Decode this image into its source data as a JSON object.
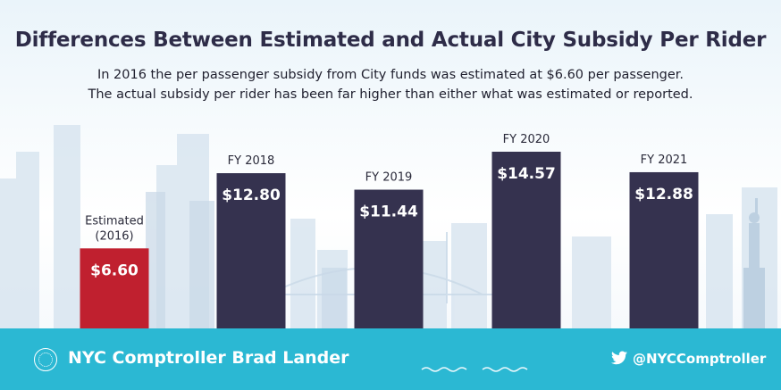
{
  "title": "Differences Between Estimated and Actual City Subsidy Per Rider",
  "subtitle_lines": [
    "In 2016 the per passenger subsidy from City funds was estimated at $6.60 per passenger.",
    "The actual subsidy per rider has been far higher than either what was estimated or reported."
  ],
  "footer": {
    "org_name": "NYC Comptroller Brad Lander",
    "handle": "@NYCComptroller",
    "icons": [
      "nyc-seal-icon",
      "twitter-bird-icon"
    ],
    "background_color": "#2bb8d3"
  },
  "chart_data": {
    "type": "bar",
    "categories": [
      "Estimated (2016)",
      "FY 2018",
      "FY 2019",
      "FY 2020",
      "FY 2021"
    ],
    "category_label_lines": [
      [
        "Estimated",
        "(2016)"
      ],
      [
        "FY 2018"
      ],
      [
        "FY 2019"
      ],
      [
        "FY 2020"
      ],
      [
        "FY 2021"
      ]
    ],
    "values": [
      6.6,
      12.8,
      11.44,
      14.57,
      12.88
    ],
    "value_labels": [
      "$6.60",
      "$12.80",
      "$11.44",
      "$14.57",
      "$12.88"
    ],
    "colors": [
      "#c0202f",
      "#35324f",
      "#35324f",
      "#35324f",
      "#35324f"
    ],
    "xlabel": "",
    "ylabel": "",
    "grid": false,
    "legend": "none"
  }
}
